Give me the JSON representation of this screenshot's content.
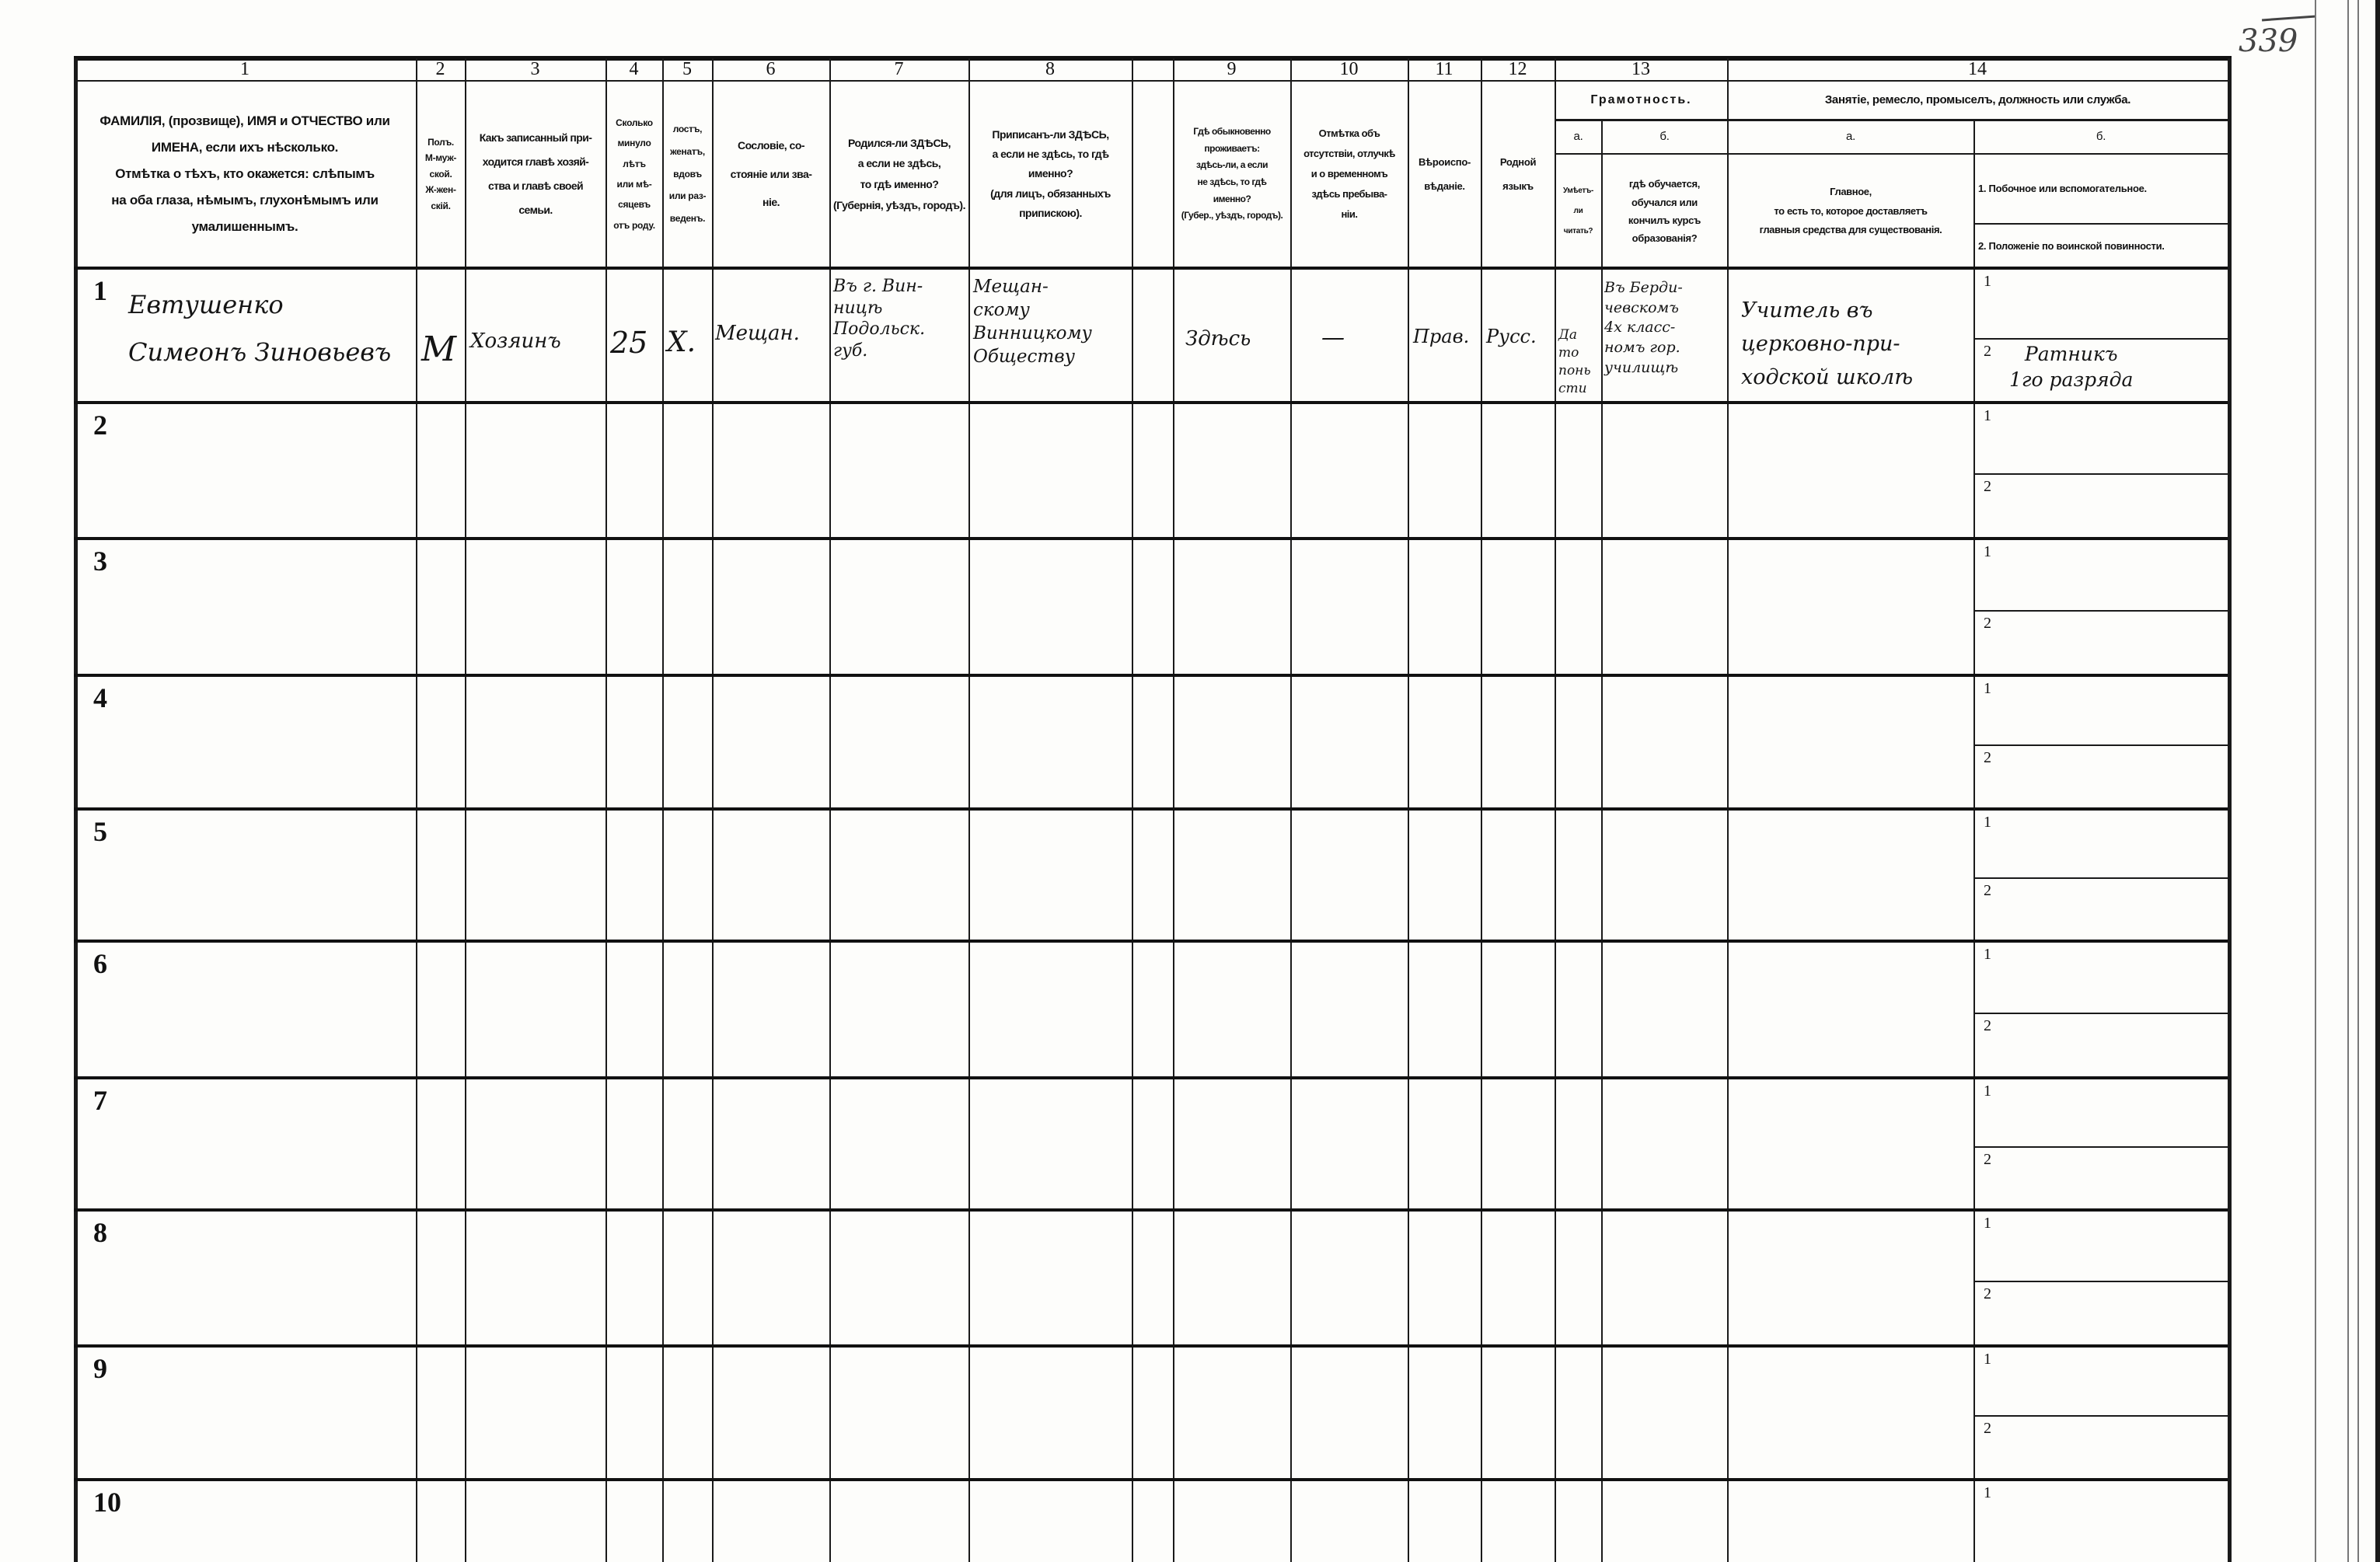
{
  "page_number": "339",
  "column_numbers": [
    "1",
    "2",
    "3",
    "4",
    "5",
    "6",
    "7",
    "8",
    "",
    "9",
    "10",
    "11",
    "12",
    "13",
    "14"
  ],
  "headers": {
    "c1": "ФАМИЛІЯ, (прозвище), ИМЯ и ОТЧЕСТВО или\nИМЕНА, если ихъ нѣсколько.\nОтмѣтка о тѣхъ, кто окажется: слѣпымъ\nна оба глаза, нѣмымъ, глухонѣмымъ или\nумалишеннымъ.",
    "c2": "Полъ.\nМ-муж-\nской.\nЖ-жен-\nскій.",
    "c3": "Какъ записанный при-\nходится главѣ хозяй-\nства и главѣ своей\nсемьи.",
    "c4": "Сколько\nминуло\nлѣтъ\nили мѣ-\nсяцевъ\nотъ роду.",
    "c5": "лостъ,\nженатъ,\nвдовъ\nили раз-\nведенъ.",
    "c6": "Сословіе, со-\nстояніе или зва-\nніе.",
    "c7": "Родился-ли ЗДѢСЬ,\nа если не здѣсь,\nто гдѣ именно?\n(Губернія, уѣздъ, городъ).",
    "c8": "Приписанъ-ли ЗДѢСЬ,\nа если не здѣсь, то гдѣ\nименно?\n(для лицъ, обязанныхъ\nприпискою).",
    "c9": "Гдѣ обыкновенно\nпроживаетъ:\nздѣсь-ли, а если\nне здѣсь, то гдѣ\nименно?\n(Губер., уѣздъ, городъ).",
    "c10": "Отмѣтка объ\nотсутствіи, отлучкѣ\nи о временномъ\nздѣсь пребыва-\nніи.",
    "c11": "Вѣроиспо-\nвѣданіе.",
    "c12": "Родной\nязыкъ",
    "c13_title": "Грамотность.",
    "c13a_label": "а.",
    "c13b_label": "б.",
    "c13a": "Умѣетъ-\nли\nчитать?",
    "c13b": "гдѣ обучается,\nобучался или\nкончилъ курсъ\nобразованія?",
    "c14_title": "Занятіе, ремесло, промыселъ, должность или служба.",
    "c14a_label": "а.",
    "c14b_label": "б.",
    "c14a": "Главное,\nто есть то, которое доставляетъ\nглавныя средства для существованія.",
    "c14b_1": "1.  Побочное или вспомогательное.",
    "c14b_2": "2.  Положеніе по воинской повинности."
  },
  "row_numbers": [
    "1",
    "2",
    "3",
    "4",
    "5",
    "6",
    "7",
    "8",
    "9",
    "10"
  ],
  "sub_numbers": [
    "1",
    "2"
  ],
  "entry": {
    "name": "Евтушенко\nСимеонъ Зиновьевъ",
    "sex": "М",
    "relation": "Хозяинъ",
    "age": "25",
    "marital": "Х.",
    "estate": "Мещан.",
    "birthplace": "Въ г. Вин-\nницѣ\nПодольск.\nгуб.",
    "registered": "Мещан-\nскому\nВинницкому\nОбществу",
    "residence": "Здѣсь",
    "absence": "—",
    "religion": "Прав.",
    "language": "Русс.",
    "can_read": "Да\nто\nпонь\nсти",
    "education": "Въ Берди-\nчевскомъ\n4х класс-\nномъ гор.\nучилищѣ",
    "occupation_main": "Учитель въ\nцерковно-при-\nходской школѣ",
    "military": "Ратникъ\n1го разряда"
  }
}
